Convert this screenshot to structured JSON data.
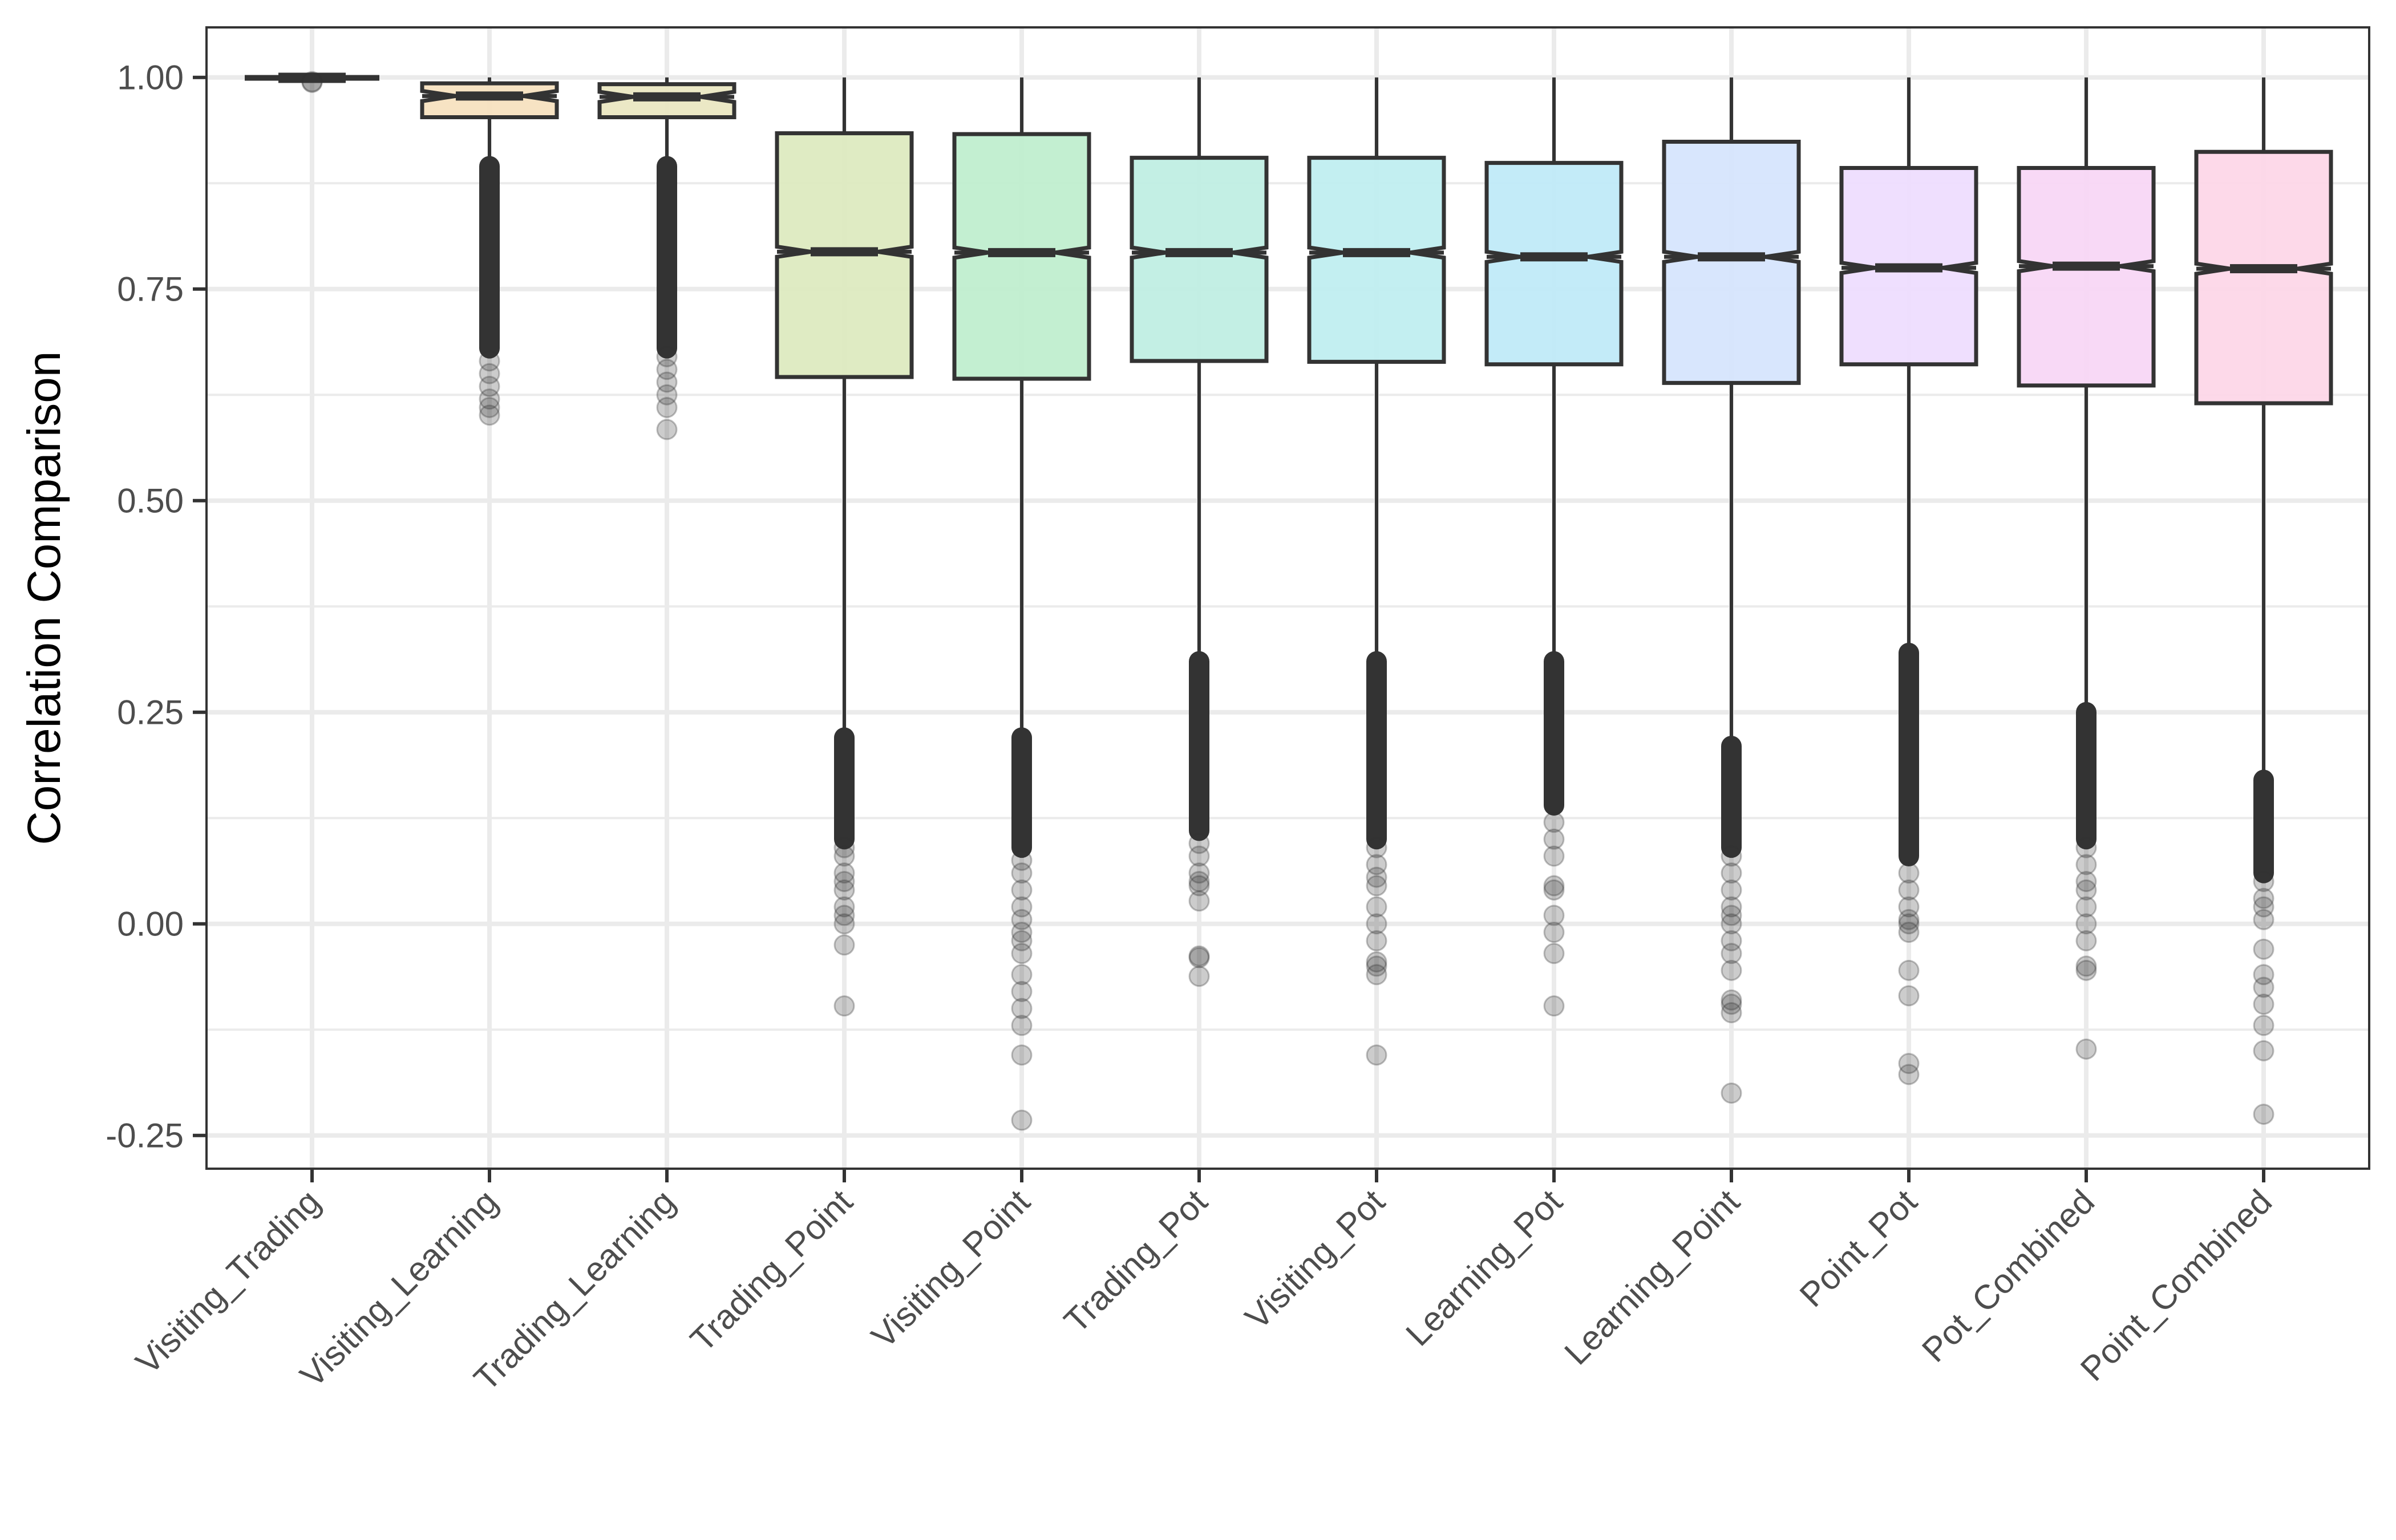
{
  "chart_data": {
    "type": "boxplot",
    "title": "",
    "xlabel": "",
    "ylabel": "Correlation Comparison",
    "ylim": [
      -0.33,
      1.06
    ],
    "yticks": [
      {
        "value": 1.0,
        "label": "1.00"
      },
      {
        "value": 0.75,
        "label": "0.75"
      },
      {
        "value": 0.5,
        "label": "0.50"
      },
      {
        "value": 0.25,
        "label": "0.25"
      },
      {
        "value": 0.0,
        "label": "0.00"
      },
      {
        "value": -0.25,
        "label": "-0.25"
      }
    ],
    "minor_gridlines": [
      0.875,
      0.625,
      0.375,
      0.125,
      -0.125
    ],
    "grid": true,
    "legend": "none",
    "notched": true,
    "categories": [
      "Visiting_Trading",
      "Visiting_Learning",
      "Trading_Learning",
      "Trading_Point",
      "Visiting_Point",
      "Trading_Pot",
      "Visiting_Pot",
      "Learning_Pot",
      "Learning_Point",
      "Point_Pot",
      "Pot_Combined",
      "Point_Combined"
    ],
    "boxes": [
      {
        "name": "Visiting_Trading",
        "fill": "#F9DCC8",
        "whisker_high": 1.0,
        "q3": 1.0,
        "median": 0.9995,
        "q1": 0.998,
        "whisker_low": 0.9985,
        "notch": 0.0005,
        "outlier_dense": null,
        "outliers": [
          0.995,
          0.994
        ]
      },
      {
        "name": "Visiting_Learning",
        "fill": "#F7E1C0",
        "whisker_high": 1.0,
        "q3": 0.993,
        "median": 0.978,
        "q1": 0.953,
        "whisker_low": 0.903,
        "outlier_dense": [
          0.895,
          0.68
        ],
        "outliers": [
          0.665,
          0.65,
          0.635,
          0.62,
          0.61,
          0.601
        ]
      },
      {
        "name": "Trading_Learning",
        "fill": "#EAE7C2",
        "whisker_high": 1.0,
        "q3": 0.992,
        "median": 0.977,
        "q1": 0.953,
        "whisker_low": 0.903,
        "outlier_dense": [
          0.895,
          0.68
        ],
        "outliers": [
          0.67,
          0.655,
          0.64,
          0.625,
          0.61,
          0.584
        ]
      },
      {
        "name": "Trading_Point",
        "fill": "#DDEAC0",
        "whisker_high": 1.0,
        "q3": 0.934,
        "median": 0.794,
        "q1": 0.646,
        "whisker_low": 0.223,
        "outlier_dense": [
          0.22,
          0.1
        ],
        "outliers": [
          0.09,
          0.08,
          0.06,
          0.05,
          0.04,
          0.02,
          0.01,
          0.0,
          -0.025,
          -0.097
        ]
      },
      {
        "name": "Visiting_Point",
        "fill": "#C0EECF",
        "whisker_high": 1.0,
        "q3": 0.933,
        "median": 0.793,
        "q1": 0.644,
        "whisker_low": 0.223,
        "outlier_dense": [
          0.22,
          0.09
        ],
        "outliers": [
          0.075,
          0.06,
          0.04,
          0.02,
          0.005,
          -0.01,
          -0.02,
          -0.035,
          -0.06,
          -0.08,
          -0.1,
          -0.12,
          -0.155,
          -0.232
        ]
      },
      {
        "name": "Trading_Pot",
        "fill": "#C0EEE3",
        "whisker_high": 1.0,
        "q3": 0.905,
        "median": 0.793,
        "q1": 0.665,
        "whisker_low": 0.313,
        "outlier_dense": [
          0.31,
          0.11
        ],
        "outliers": [
          0.095,
          0.08,
          0.06,
          0.05,
          0.045,
          0.027,
          -0.038,
          -0.04,
          -0.062
        ]
      },
      {
        "name": "Visiting_Pot",
        "fill": "#C0EEF0",
        "whisker_high": 1.0,
        "q3": 0.905,
        "median": 0.793,
        "q1": 0.664,
        "whisker_low": 0.313,
        "outlier_dense": [
          0.31,
          0.1
        ],
        "outliers": [
          0.09,
          0.07,
          0.055,
          0.045,
          0.02,
          0.0,
          -0.02,
          -0.045,
          -0.05,
          -0.06,
          -0.155
        ]
      },
      {
        "name": "Learning_Pot",
        "fill": "#C0EAF8",
        "whisker_high": 1.0,
        "q3": 0.899,
        "median": 0.788,
        "q1": 0.661,
        "whisker_low": 0.313,
        "outlier_dense": [
          0.31,
          0.14
        ],
        "outliers": [
          0.12,
          0.1,
          0.08,
          0.045,
          0.04,
          0.01,
          -0.01,
          -0.035,
          -0.097
        ]
      },
      {
        "name": "Learning_Point",
        "fill": "#D6E5FD",
        "whisker_high": 1.0,
        "q3": 0.924,
        "median": 0.788,
        "q1": 0.639,
        "whisker_low": 0.213,
        "outlier_dense": [
          0.21,
          0.09
        ],
        "outliers": [
          0.08,
          0.06,
          0.04,
          0.02,
          0.01,
          0.0,
          -0.02,
          -0.035,
          -0.055,
          -0.09,
          -0.095,
          -0.105,
          -0.2
        ]
      },
      {
        "name": "Point_Pot",
        "fill": "#EEDDFE",
        "whisker_high": 1.0,
        "q3": 0.893,
        "median": 0.775,
        "q1": 0.661,
        "whisker_low": 0.323,
        "outlier_dense": [
          0.32,
          0.08
        ],
        "outliers": [
          0.06,
          0.04,
          0.02,
          0.005,
          0.0,
          -0.01,
          -0.055,
          -0.085,
          -0.165,
          -0.178
        ]
      },
      {
        "name": "Pot_Combined",
        "fill": "#F8D7F6",
        "whisker_high": 1.0,
        "q3": 0.893,
        "median": 0.777,
        "q1": 0.636,
        "whisker_low": 0.253,
        "outlier_dense": [
          0.25,
          0.1
        ],
        "outliers": [
          0.09,
          0.07,
          0.05,
          0.04,
          0.02,
          0.0,
          -0.02,
          -0.05,
          -0.055,
          -0.148
        ]
      },
      {
        "name": "Point_Combined",
        "fill": "#FDD7E8",
        "whisker_high": 1.0,
        "q3": 0.912,
        "median": 0.774,
        "q1": 0.615,
        "whisker_low": 0.173,
        "outlier_dense": [
          0.17,
          0.06
        ],
        "outliers": [
          0.05,
          0.03,
          0.02,
          0.005,
          -0.03,
          -0.06,
          -0.075,
          -0.095,
          -0.12,
          -0.15,
          -0.225
        ]
      }
    ],
    "colors": {
      "box_outline": "#333333",
      "outlier": "#333333",
      "grid": "#EBEBEB",
      "panel_border": "#333333",
      "tick_text": "#4D4D4D",
      "axis_title": "#000000"
    }
  }
}
